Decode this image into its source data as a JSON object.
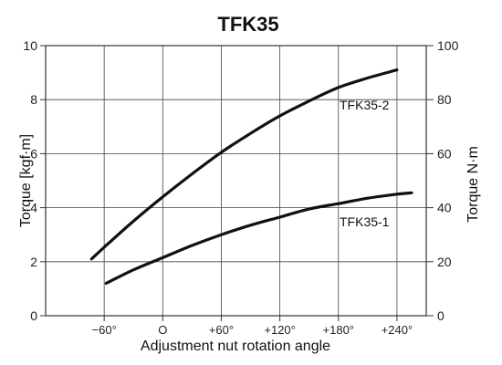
{
  "chart_data": {
    "type": "line",
    "title": "TFK35",
    "xlabel": "Adjustment nut rotation angle",
    "ylabel": "Torque [kgf·m]",
    "ylabel_right": "Torque N·m",
    "x_ticks": [
      "−60°",
      "O",
      "+60°",
      "+120°",
      "+180°",
      "+240°"
    ],
    "x_tick_values": [
      -60,
      0,
      60,
      120,
      180,
      240
    ],
    "xlim": [
      -120,
      270
    ],
    "ylim": [
      0,
      10
    ],
    "y_ticks": [
      "0",
      "2",
      "4",
      "6",
      "8",
      "10"
    ],
    "y_tick_values": [
      0,
      2,
      4,
      6,
      8,
      10
    ],
    "ylim_right": [
      0,
      100
    ],
    "y_ticks_right": [
      "0",
      "20",
      "40",
      "60",
      "80",
      "100"
    ],
    "y_tick_values_right": [
      0,
      20,
      40,
      60,
      80,
      100
    ],
    "grid": true,
    "series": [
      {
        "name": "TFK35-2",
        "x": [
          -73,
          -55,
          -30,
          0,
          30,
          60,
          90,
          120,
          150,
          180,
          210,
          240
        ],
        "y": [
          2.1,
          2.7,
          3.5,
          4.4,
          5.25,
          6.05,
          6.75,
          7.4,
          7.95,
          8.45,
          8.8,
          9.1
        ]
      },
      {
        "name": "TFK35-1",
        "x": [
          -58,
          -30,
          0,
          30,
          60,
          90,
          120,
          150,
          180,
          210,
          240,
          255
        ],
        "y": [
          1.2,
          1.7,
          2.15,
          2.6,
          3.0,
          3.35,
          3.65,
          3.95,
          4.15,
          4.35,
          4.5,
          4.55
        ]
      }
    ],
    "series_label_positions": [
      "right-of-curve",
      "right-of-curve"
    ]
  }
}
